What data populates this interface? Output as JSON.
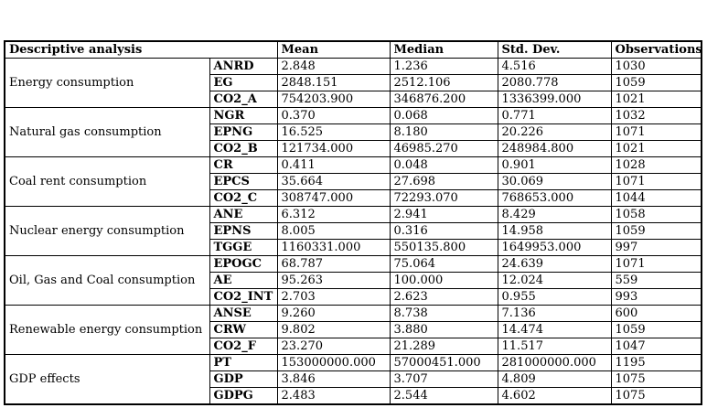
{
  "table": {
    "merged_header": "Descriptive analysis",
    "columns": [
      "Mean",
      "Median",
      "Std. Dev.",
      "Observations"
    ],
    "groups": [
      {
        "category": "Energy consumption",
        "rows": [
          {
            "variable": "ANRD",
            "mean": "2.848",
            "median": "1.236",
            "std_dev": "4.516",
            "observations": "1030"
          },
          {
            "variable": "EG",
            "mean": "2848.151",
            "median": "2512.106",
            "std_dev": "2080.778",
            "observations": "1059"
          },
          {
            "variable": "CO2_A",
            "mean": "754203.900",
            "median": "346876.200",
            "std_dev": "1336399.000",
            "observations": "1021"
          }
        ]
      },
      {
        "category": "Natural gas consumption",
        "rows": [
          {
            "variable": "NGR",
            "mean": "0.370",
            "median": "0.068",
            "std_dev": "0.771",
            "observations": "1032"
          },
          {
            "variable": "EPNG",
            "mean": "16.525",
            "median": "8.180",
            "std_dev": "20.226",
            "observations": "1071"
          },
          {
            "variable": "CO2_B",
            "mean": "121734.000",
            "median": "46985.270",
            "std_dev": "248984.800",
            "observations": "1021"
          }
        ]
      },
      {
        "category": "Coal rent consumption",
        "rows": [
          {
            "variable": "CR",
            "mean": "0.411",
            "median": "0.048",
            "std_dev": "0.901",
            "observations": "1028"
          },
          {
            "variable": "EPCS",
            "mean": "35.664",
            "median": "27.698",
            "std_dev": "30.069",
            "observations": "1071"
          },
          {
            "variable": "CO2_C",
            "mean": "308747.000",
            "median": "72293.070",
            "std_dev": "768653.000",
            "observations": "1044"
          }
        ]
      },
      {
        "category": "Nuclear energy consumption",
        "rows": [
          {
            "variable": "ANE",
            "mean": "6.312",
            "median": "2.941",
            "std_dev": "8.429",
            "observations": "1058"
          },
          {
            "variable": "EPNS",
            "mean": "8.005",
            "median": "0.316",
            "std_dev": "14.958",
            "observations": "1059"
          },
          {
            "variable": "TGGE",
            "mean": "1160331.000",
            "median": "550135.800",
            "std_dev": "1649953.000",
            "observations": "997"
          }
        ]
      },
      {
        "category": "Oil, Gas and Coal consumption",
        "rows": [
          {
            "variable": "EPOGC",
            "mean": "68.787",
            "median": "75.064",
            "std_dev": "24.639",
            "observations": "1071"
          },
          {
            "variable": "AE",
            "mean": "95.263",
            "median": "100.000",
            "std_dev": "12.024",
            "observations": "559"
          },
          {
            "variable": "CO2_INT",
            "mean": "2.703",
            "median": "2.623",
            "std_dev": "0.955",
            "observations": "993"
          }
        ]
      },
      {
        "category": "Renewable energy consumption",
        "rows": [
          {
            "variable": "ANSE",
            "mean": "9.260",
            "median": "8.738",
            "std_dev": "7.136",
            "observations": "600"
          },
          {
            "variable": "CRW",
            "mean": "9.802",
            "median": "3.880",
            "std_dev": "14.474",
            "observations": "1059"
          },
          {
            "variable": "CO2_F",
            "mean": "23.270",
            "median": "21.289",
            "std_dev": "11.517",
            "observations": "1047"
          }
        ]
      },
      {
        "category": "GDP effects",
        "rows": [
          {
            "variable": "PT",
            "mean": "153000000.000",
            "median": "57000451.000",
            "std_dev": "281000000.000",
            "observations": "1195"
          },
          {
            "variable": "GDP",
            "mean": "3.846",
            "median": "3.707",
            "std_dev": "4.809",
            "observations": "1075"
          },
          {
            "variable": "GDPG",
            "mean": "2.483",
            "median": "2.544",
            "std_dev": "4.602",
            "observations": "1075"
          }
        ]
      }
    ]
  }
}
